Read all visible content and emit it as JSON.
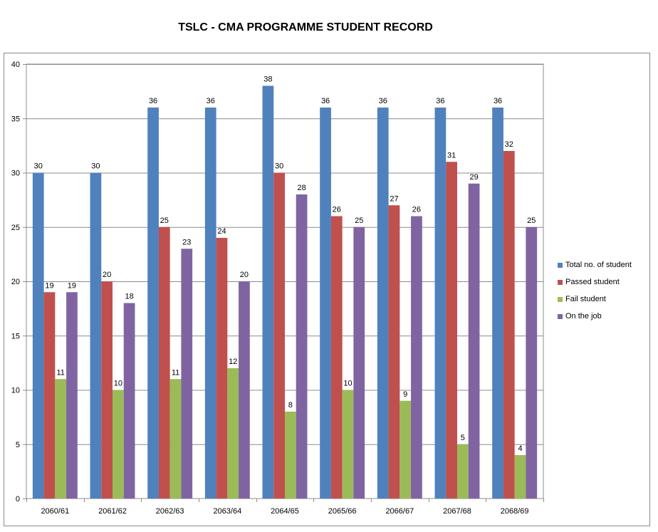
{
  "chart_data": {
    "type": "bar",
    "title": "TSLC - CMA PROGRAMME STUDENT RECORD",
    "xlabel": "",
    "ylabel": "",
    "ylim": [
      0,
      40
    ],
    "yticks": [
      0,
      5,
      10,
      15,
      20,
      25,
      30,
      35,
      40
    ],
    "grid": true,
    "legend_position": "right",
    "categories": [
      "2060/61",
      "2061/62",
      "2062/63",
      "2063/64",
      "2064/65",
      "2065/66",
      "2066/67",
      "2067/68",
      "2068/69"
    ],
    "series": [
      {
        "name": "Total no. of student",
        "color": "#4f81bd",
        "values": [
          30,
          30,
          36,
          36,
          38,
          36,
          36,
          36,
          36
        ]
      },
      {
        "name": "Passed student",
        "color": "#c0504d",
        "values": [
          19,
          20,
          25,
          24,
          30,
          26,
          27,
          31,
          32
        ]
      },
      {
        "name": "Fail student",
        "color": "#9bbb59",
        "values": [
          11,
          10,
          11,
          12,
          8,
          10,
          9,
          5,
          4
        ]
      },
      {
        "name": "On the job",
        "color": "#8064a2",
        "values": [
          19,
          18,
          23,
          20,
          28,
          25,
          26,
          29,
          25
        ]
      }
    ]
  }
}
